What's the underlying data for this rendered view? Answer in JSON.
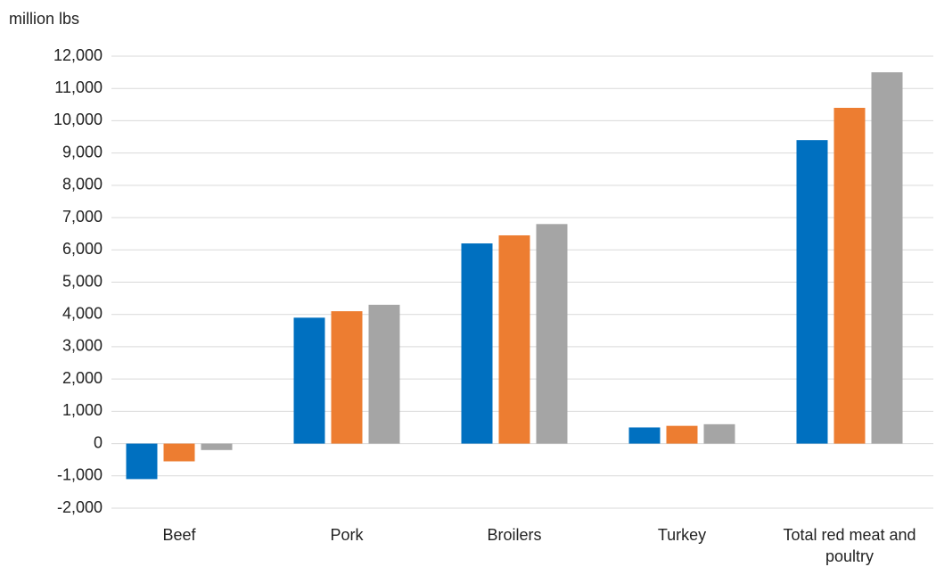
{
  "chart_data": {
    "type": "bar",
    "y_axis_label": "million lbs",
    "categories": [
      "Beef",
      "Pork",
      "Broilers",
      "Turkey",
      "Total red meat and poultry"
    ],
    "series": [
      {
        "color": "#0070c0",
        "values": [
          -1100,
          3900,
          6200,
          500,
          9400
        ]
      },
      {
        "color": "#ed7d31",
        "values": [
          -550,
          4100,
          6450,
          550,
          10400
        ]
      },
      {
        "color": "#a5a5a5",
        "values": [
          -200,
          4300,
          6800,
          600,
          11500
        ]
      }
    ],
    "ylim": [
      -2000,
      12000
    ],
    "yticks": [
      {
        "value": -2000,
        "label": "-2,000"
      },
      {
        "value": -1000,
        "label": "-1,000"
      },
      0,
      {
        "value": 1000,
        "label": "1,000"
      },
      {
        "value": 2000,
        "label": "2,000"
      },
      {
        "value": 3000,
        "label": "3,000"
      },
      {
        "value": 4000,
        "label": "4,000"
      },
      {
        "value": 5000,
        "label": "5,000"
      },
      {
        "value": 6000,
        "label": "6,000"
      },
      {
        "value": 7000,
        "label": "7,000"
      },
      {
        "value": 8000,
        "label": "8,000"
      },
      {
        "value": 9000,
        "label": "9,000"
      },
      {
        "value": 10000,
        "label": "10,000"
      },
      {
        "value": 11000,
        "label": "11,000"
      },
      {
        "value": 12000,
        "label": "12,000"
      }
    ],
    "grid": true
  }
}
